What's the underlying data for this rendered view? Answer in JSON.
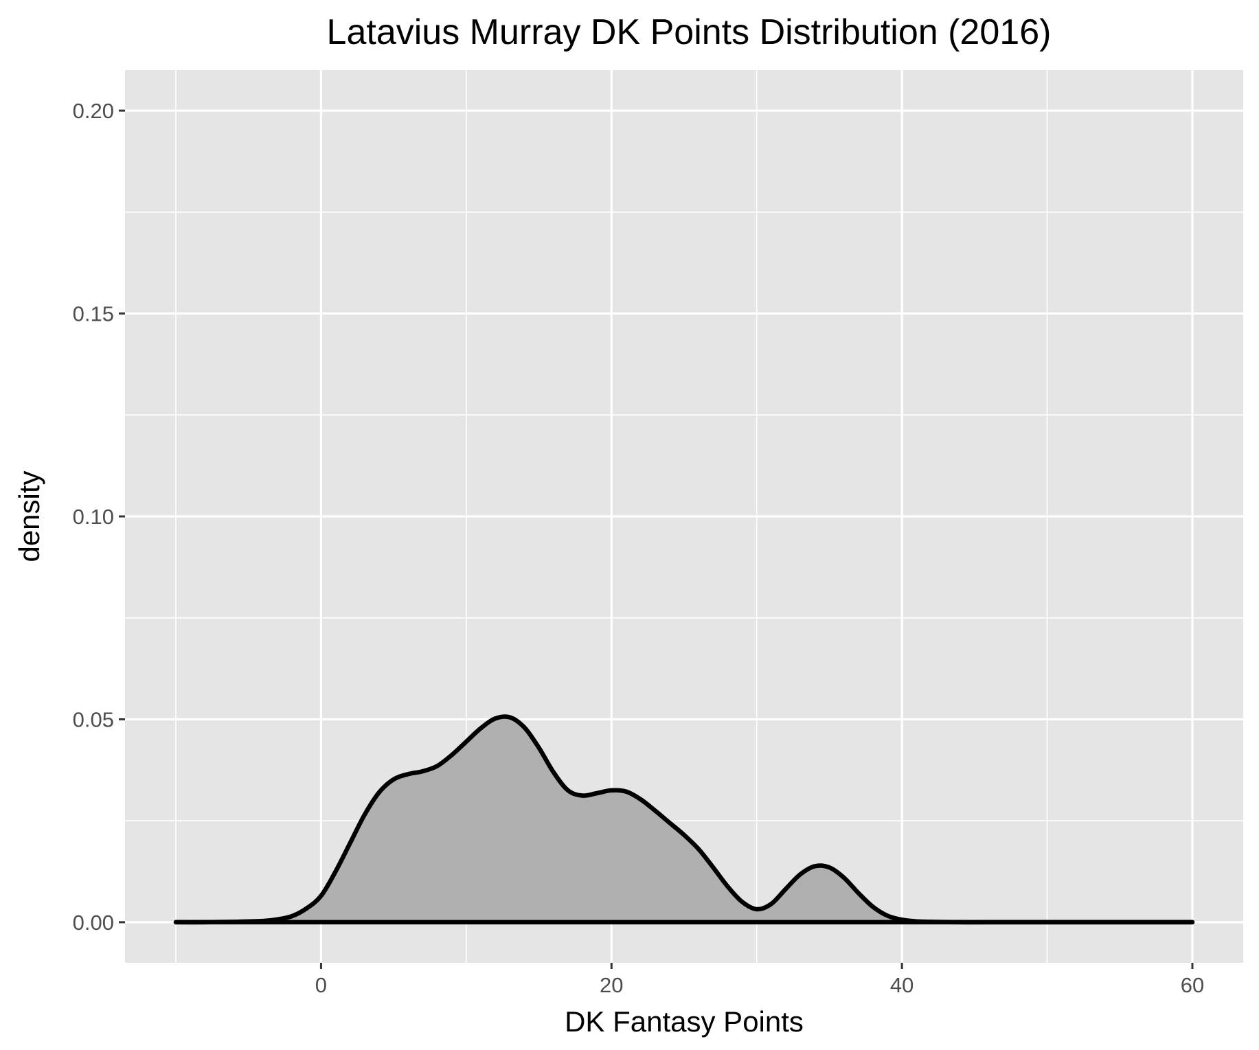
{
  "chart_data": {
    "type": "area",
    "title": "Latavius Murray DK Points Distribution (2016)",
    "xlabel": "DK Fantasy Points",
    "ylabel": "density",
    "xlim": [
      -13.5,
      63.5
    ],
    "ylim": [
      -0.01,
      0.21
    ],
    "x_ticks": [
      {
        "value": 0,
        "label": "0"
      },
      {
        "value": 20,
        "label": "20"
      },
      {
        "value": 40,
        "label": "40"
      },
      {
        "value": 60,
        "label": "60"
      }
    ],
    "x_minor": [
      -10,
      10,
      30,
      50
    ],
    "y_ticks": [
      {
        "value": 0,
        "label": "0.00"
      },
      {
        "value": 0.05,
        "label": "0.05"
      },
      {
        "value": 0.1,
        "label": "0.10"
      },
      {
        "value": 0.15,
        "label": "0.15"
      },
      {
        "value": 0.2,
        "label": "0.20"
      }
    ],
    "y_minor": [
      0.025,
      0.075,
      0.125,
      0.175
    ],
    "grid": true,
    "colors": {
      "panel_background": "#e5e5e5",
      "grid": "#ffffff",
      "fill": "#b0b0b0",
      "line": "#000000",
      "tick_text": "#4d4d4d"
    },
    "x": [
      -10,
      -8,
      -6,
      -4,
      -3,
      -2,
      -1,
      0,
      1,
      2,
      3,
      4,
      5,
      6,
      7,
      8,
      9,
      10,
      11,
      12,
      13,
      14,
      15,
      16,
      17,
      18,
      19,
      20,
      21,
      22,
      23,
      24,
      25,
      26,
      27,
      28,
      29,
      30,
      31,
      32,
      33,
      34,
      35,
      36,
      37,
      38,
      39,
      40,
      41,
      42,
      44,
      46,
      50,
      55,
      60
    ],
    "y": [
      0.0,
      0.0,
      0.0001,
      0.0003,
      0.0007,
      0.0015,
      0.0034,
      0.0065,
      0.0125,
      0.0195,
      0.0265,
      0.032,
      0.0352,
      0.0365,
      0.0372,
      0.0385,
      0.0412,
      0.0445,
      0.0478,
      0.0502,
      0.0505,
      0.048,
      0.043,
      0.037,
      0.0325,
      0.0312,
      0.0318,
      0.0325,
      0.0322,
      0.0303,
      0.0275,
      0.0245,
      0.0215,
      0.018,
      0.0135,
      0.0088,
      0.005,
      0.0032,
      0.0045,
      0.0082,
      0.0118,
      0.0138,
      0.0135,
      0.011,
      0.0072,
      0.0038,
      0.0016,
      0.0006,
      0.0002,
      0.0001,
      0.0,
      0.0,
      0.0,
      0.0,
      0.0
    ]
  }
}
